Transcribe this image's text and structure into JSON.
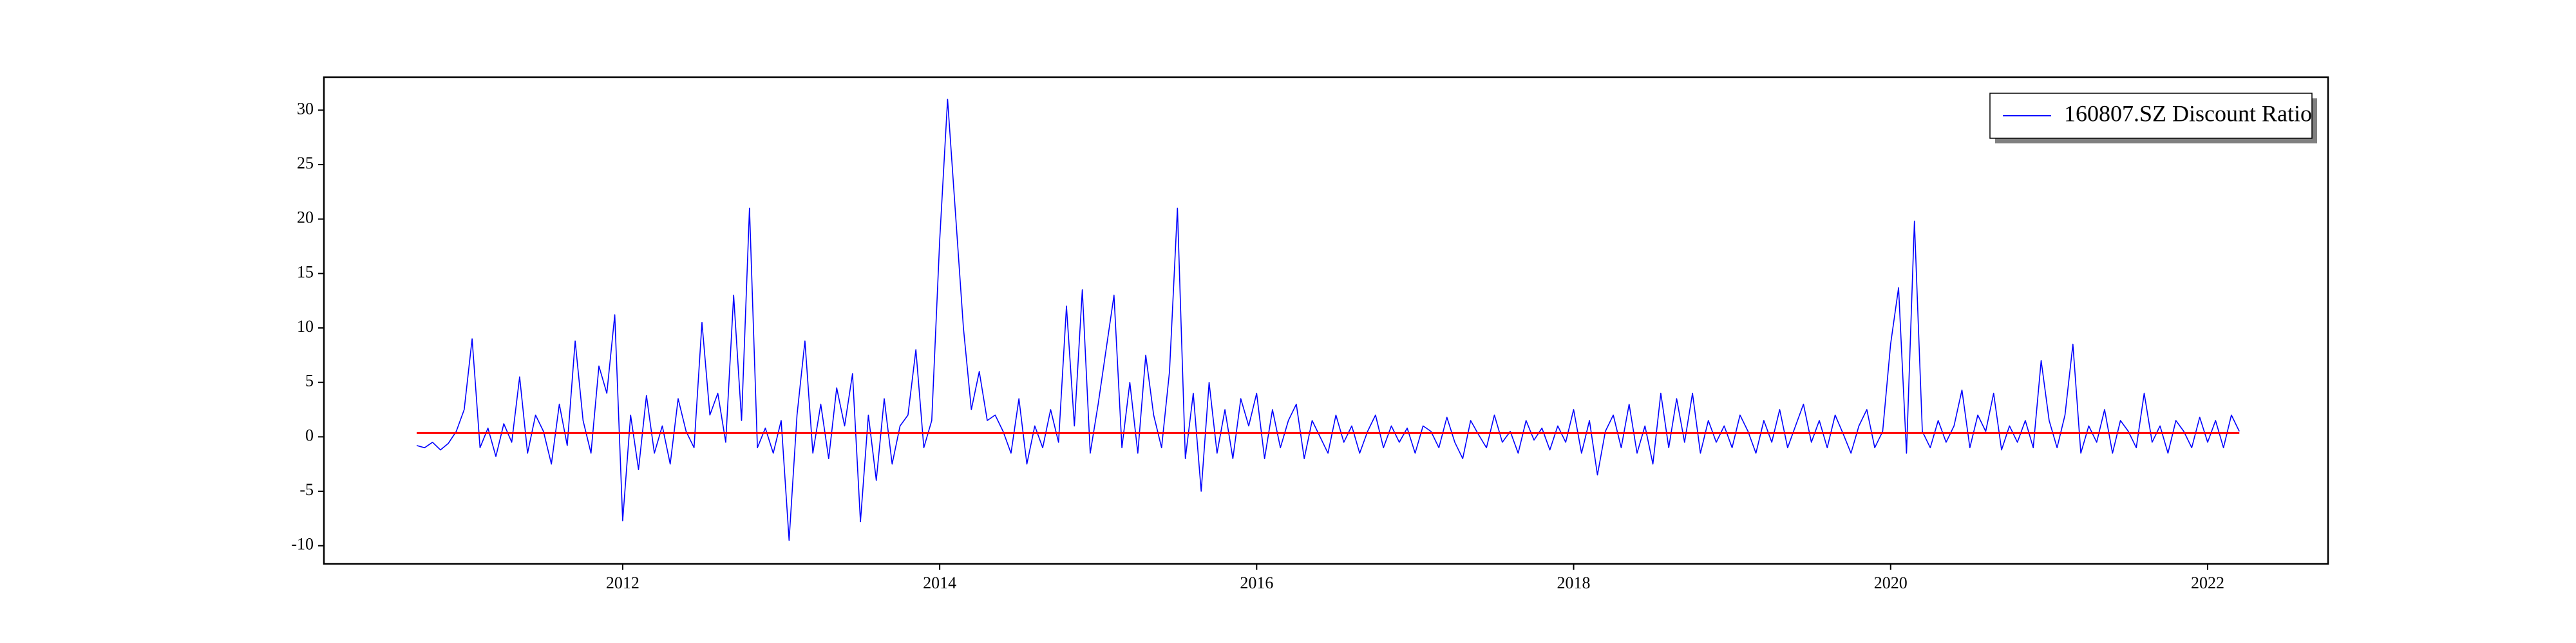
{
  "chart_data": {
    "type": "line",
    "x": [
      2010.7,
      2010.75,
      2010.8,
      2010.85,
      2010.9,
      2010.95,
      2011,
      2011.05,
      2011.1,
      2011.15,
      2011.2,
      2011.25,
      2011.3,
      2011.35,
      2011.4,
      2011.45,
      2011.5,
      2011.55,
      2011.6,
      2011.65,
      2011.7,
      2011.75,
      2011.8,
      2011.85,
      2011.9,
      2011.95,
      2012,
      2012.05,
      2012.1,
      2012.15,
      2012.2,
      2012.25,
      2012.3,
      2012.35,
      2012.4,
      2012.45,
      2012.5,
      2012.55,
      2012.6,
      2012.65,
      2012.7,
      2012.75,
      2012.8,
      2012.85,
      2012.9,
      2012.95,
      2013,
      2013.05,
      2013.1,
      2013.15,
      2013.2,
      2013.25,
      2013.3,
      2013.35,
      2013.4,
      2013.45,
      2013.5,
      2013.55,
      2013.6,
      2013.65,
      2013.7,
      2013.75,
      2013.8,
      2013.85,
      2013.9,
      2013.95,
      2014,
      2014.05,
      2014.1,
      2014.15,
      2014.2,
      2014.25,
      2014.3,
      2014.35,
      2014.4,
      2014.45,
      2014.5,
      2014.55,
      2014.6,
      2014.65,
      2014.7,
      2014.75,
      2014.8,
      2014.85,
      2014.9,
      2014.95,
      2015,
      2015.05,
      2015.1,
      2015.15,
      2015.2,
      2015.25,
      2015.3,
      2015.35,
      2015.4,
      2015.45,
      2015.5,
      2015.55,
      2015.6,
      2015.65,
      2015.7,
      2015.75,
      2015.8,
      2015.85,
      2015.9,
      2015.95,
      2016,
      2016.05,
      2016.1,
      2016.15,
      2016.2,
      2016.25,
      2016.3,
      2016.35,
      2016.4,
      2016.45,
      2016.5,
      2016.55,
      2016.6,
      2016.65,
      2016.7,
      2016.75,
      2016.8,
      2016.85,
      2016.9,
      2016.95,
      2017,
      2017.05,
      2017.1,
      2017.15,
      2017.2,
      2017.25,
      2017.3,
      2017.35,
      2017.4,
      2017.45,
      2017.5,
      2017.55,
      2017.6,
      2017.65,
      2017.7,
      2017.75,
      2017.8,
      2017.85,
      2017.9,
      2017.95,
      2018,
      2018.05,
      2018.1,
      2018.15,
      2018.2,
      2018.25,
      2018.3,
      2018.35,
      2018.4,
      2018.45,
      2018.5,
      2018.55,
      2018.6,
      2018.65,
      2018.7,
      2018.75,
      2018.8,
      2018.85,
      2018.9,
      2018.95,
      2019,
      2019.05,
      2019.1,
      2019.15,
      2019.2,
      2019.25,
      2019.3,
      2019.35,
      2019.4,
      2019.45,
      2019.5,
      2019.55,
      2019.6,
      2019.65,
      2019.7,
      2019.75,
      2019.8,
      2019.85,
      2019.9,
      2019.95,
      2020,
      2020.05,
      2020.1,
      2020.15,
      2020.2,
      2020.25,
      2020.3,
      2020.35,
      2020.4,
      2020.45,
      2020.5,
      2020.55,
      2020.6,
      2020.65,
      2020.7,
      2020.75,
      2020.8,
      2020.85,
      2020.9,
      2020.95,
      2021,
      2021.05,
      2021.1,
      2021.15,
      2021.2,
      2021.25,
      2021.3,
      2021.35,
      2021.4,
      2021.45,
      2021.5,
      2021.55,
      2021.6,
      2021.65,
      2021.7,
      2021.75,
      2021.8,
      2021.85,
      2021.9,
      2021.95,
      2022,
      2022.05,
      2022.1,
      2022.15,
      2022.2
    ],
    "series": [
      {
        "name": "160807.SZ Discount Ratio",
        "color": "#0000ff",
        "values": [
          -0.8,
          -1.0,
          -0.5,
          -1.2,
          -0.6,
          0.5,
          2.5,
          9.0,
          -1.0,
          0.8,
          -1.8,
          1.2,
          -0.5,
          5.5,
          -1.5,
          2.0,
          0.5,
          -2.5,
          3.0,
          -0.8,
          8.8,
          1.5,
          -1.5,
          6.5,
          4.0,
          11.2,
          -7.7,
          2.0,
          -3.0,
          3.8,
          -1.5,
          1.0,
          -2.5,
          3.5,
          0.5,
          -1.0,
          10.5,
          2.0,
          4.0,
          -0.5,
          13.0,
          1.5,
          21.0,
          -1.0,
          0.8,
          -1.5,
          1.5,
          -9.5,
          2.0,
          8.8,
          -1.5,
          3.0,
          -2.0,
          4.5,
          1.0,
          5.8,
          -7.8,
          2.0,
          -4.0,
          3.5,
          -2.5,
          1.0,
          2.0,
          8.0,
          -1.0,
          1.5,
          18.0,
          31.0,
          20.5,
          10.0,
          2.5,
          6.0,
          1.5,
          2.0,
          0.5,
          -1.5,
          3.5,
          -2.5,
          1.0,
          -1.0,
          2.5,
          -0.5,
          12.0,
          1.0,
          13.5,
          -1.5,
          3.0,
          8.0,
          13.0,
          -1.0,
          5.0,
          -1.5,
          7.5,
          2.0,
          -1.0,
          6.0,
          21.0,
          -2.0,
          4.0,
          -5.0,
          5.0,
          -1.5,
          2.5,
          -2.0,
          3.5,
          1.0,
          4.0,
          -2.0,
          2.5,
          -1.0,
          1.5,
          3.0,
          -2.0,
          1.5,
          0.0,
          -1.5,
          2.0,
          -0.5,
          1.0,
          -1.5,
          0.5,
          2.0,
          -1.0,
          1.0,
          -0.5,
          0.8,
          -1.5,
          1.0,
          0.5,
          -1.0,
          1.8,
          -0.5,
          -2.0,
          1.5,
          0.2,
          -1.0,
          2.0,
          -0.5,
          0.5,
          -1.5,
          1.5,
          -0.3,
          0.8,
          -1.2,
          1.0,
          -0.5,
          2.5,
          -1.5,
          1.5,
          -3.5,
          0.5,
          2.0,
          -1.0,
          3.0,
          -1.5,
          1.0,
          -2.5,
          4.0,
          -1.0,
          3.5,
          -0.5,
          4.0,
          -1.5,
          1.5,
          -0.5,
          1.0,
          -1.0,
          2.0,
          0.5,
          -1.5,
          1.5,
          -0.5,
          2.5,
          -1.0,
          1.0,
          3.0,
          -0.5,
          1.5,
          -1.0,
          2.0,
          0.3,
          -1.5,
          1.0,
          2.5,
          -1.0,
          0.5,
          8.5,
          13.7,
          -1.5,
          19.8,
          0.5,
          -1.0,
          1.5,
          -0.5,
          1.0,
          4.3,
          -1.0,
          2.0,
          0.5,
          4.0,
          -1.2,
          1.0,
          -0.5,
          1.5,
          -1.0,
          7.0,
          1.5,
          -1.0,
          2.0,
          8.5,
          -1.5,
          1.0,
          -0.5,
          2.5,
          -1.5,
          1.5,
          0.5,
          -1.0,
          4.0,
          -0.5,
          1.0,
          -1.5,
          1.5,
          0.5,
          -1.0,
          1.8,
          -0.5,
          1.5,
          -1.0,
          2.0,
          0.5
        ]
      },
      {
        "color": "#ff0000",
        "x": [
          2010.7,
          2022.2
        ],
        "values": [
          0.35,
          0.35
        ]
      }
    ],
    "xlim": [
      2010.115,
      2022.76
    ],
    "xticks": [
      2012,
      2014,
      2016,
      2018,
      2020,
      2022
    ],
    "ylim": [
      -11.67,
      33.03
    ],
    "yticks": [
      -10,
      -5,
      0,
      5,
      10,
      15,
      20,
      25,
      30
    ],
    "legend": "upper right"
  }
}
